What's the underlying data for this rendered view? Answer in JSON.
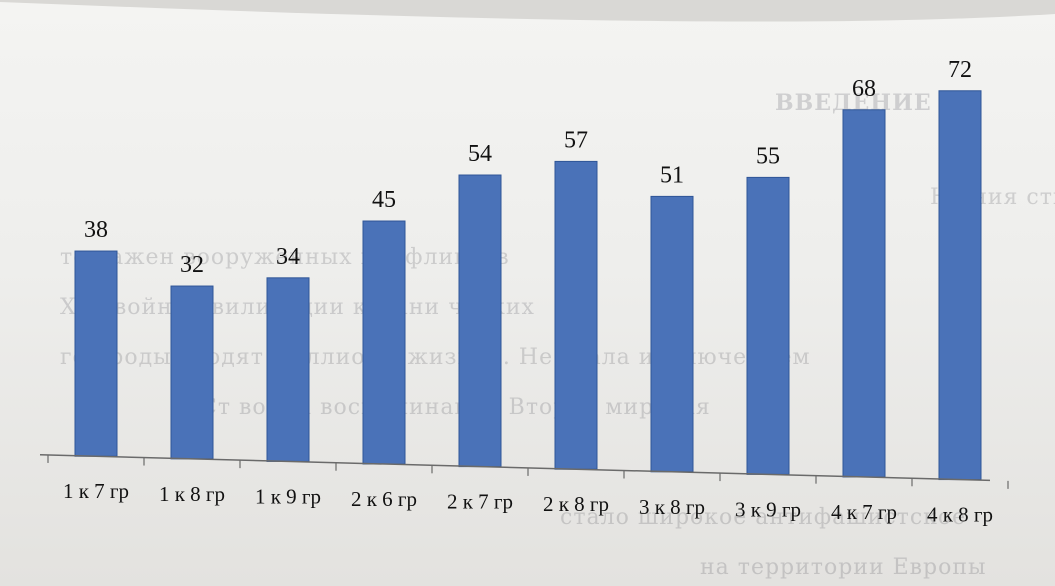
{
  "chart_data": {
    "type": "bar",
    "categories": [
      "1 к 7 гр",
      "1 к 8 гр",
      "1 к 9 гр",
      "2 к 6 гр",
      "2 к 7 гр",
      "2 к 8 гр",
      "3 к 8 гр",
      "3 к 9 гр",
      "4 к 7 гр",
      "4 к 8 гр"
    ],
    "values": [
      38,
      32,
      34,
      45,
      54,
      57,
      51,
      55,
      68,
      72
    ],
    "title": "",
    "xlabel": "",
    "ylabel": "",
    "ylim": [
      0,
      80
    ],
    "grid": false,
    "legend": "none",
    "data_labels": true,
    "bar_color": "#4a72b8",
    "bar_edge_color": "#2f5597",
    "axis_color": "#6a6a6a"
  }
}
